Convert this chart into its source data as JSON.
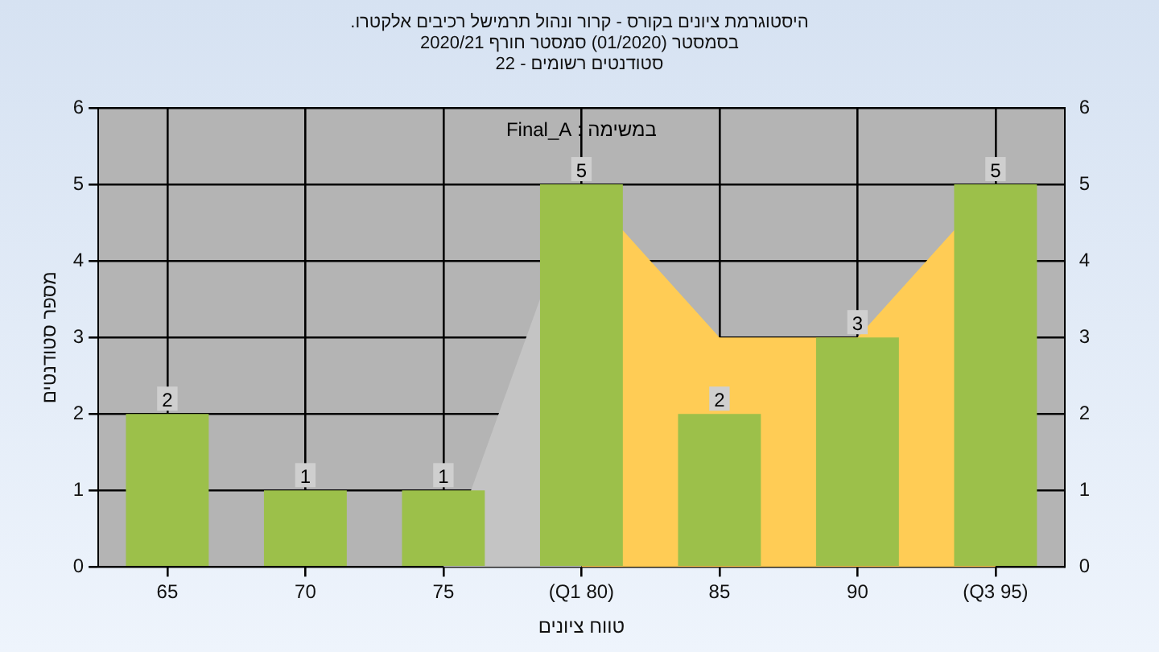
{
  "chart_data": {
    "type": "bar",
    "title": "היסטוגרמת ציונים בקורס - קרור ונהול תרמישל רכיבים אלקטרו.",
    "subtitle": "בסמסטר  (01/2020)  סמסטר חורף  2020/21\nסטודנטים רשומים - 22",
    "xlabel": "טווח ציונים",
    "ylabel": "מספר סטודנטים",
    "annotations": [
      "במשימה : Final_A"
    ],
    "categories": [
      "65",
      "70",
      "75",
      "(Q1 80)",
      "85",
      "90",
      "(Q3 95)"
    ],
    "series": [
      {
        "color": "#9cc04a",
        "values": [
          2,
          1,
          1,
          5,
          2,
          3,
          5
        ],
        "data_labels": true
      },
      {
        "type": "area",
        "color": "#c4c4c4",
        "values": [
          null,
          null,
          0,
          5,
          null,
          null,
          null
        ]
      },
      {
        "type": "area",
        "color": "#ffcc55",
        "values": [
          null,
          null,
          null,
          5,
          3,
          3,
          5
        ]
      }
    ],
    "ylim": [
      0,
      6
    ],
    "yticks": [
      0,
      1,
      2,
      3,
      4,
      5,
      6
    ],
    "y2lim": [
      0,
      6
    ],
    "y2ticks": [
      0,
      1,
      2,
      3,
      4,
      5,
      6
    ],
    "grid": true,
    "legend": false
  }
}
